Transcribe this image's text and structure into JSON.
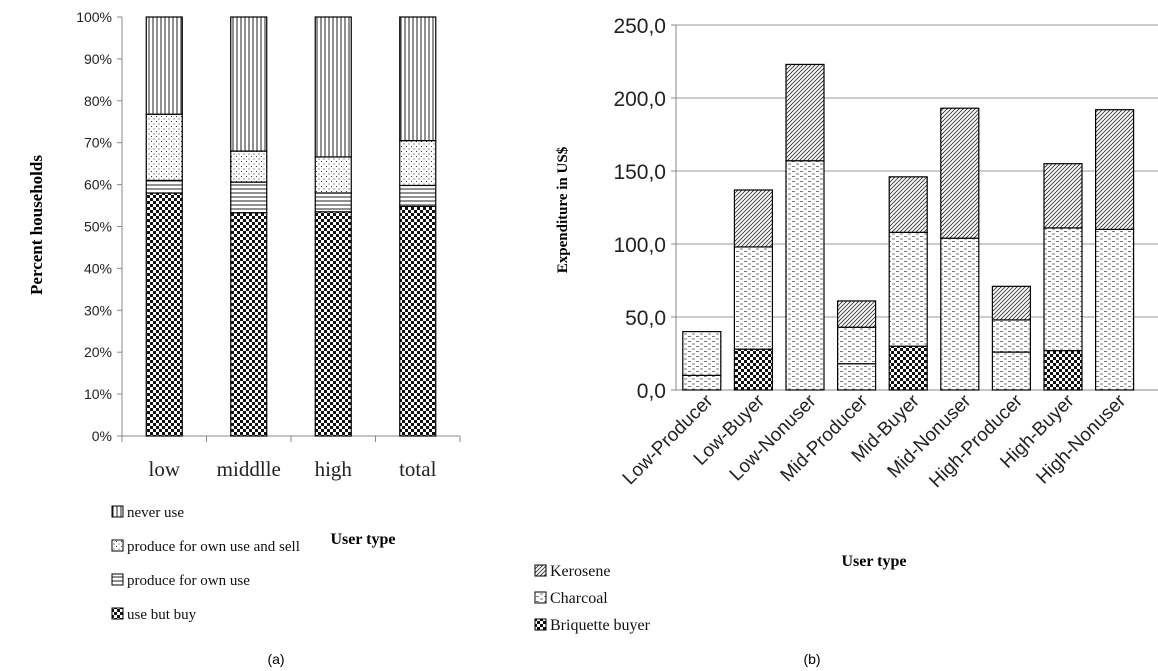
{
  "chart_data": [
    {
      "type": "bar",
      "stacked": true,
      "percent": true,
      "caption": "(a)",
      "ylabel": "Percent households",
      "xlabel": "User type",
      "categories": [
        "low",
        "middlle",
        "high",
        "total"
      ],
      "yticks": [
        "0%",
        "10%",
        "20%",
        "30%",
        "40%",
        "50%",
        "60%",
        "70%",
        "80%",
        "90%",
        "100%"
      ],
      "ylim": [
        0,
        100
      ],
      "grid": false,
      "legend_position": "bottom-left",
      "series": [
        {
          "name": "use but buy",
          "pattern": "checker",
          "values": [
            58,
            53.3,
            53.5,
            54.8
          ]
        },
        {
          "name": "produce for own use",
          "pattern": "hlines",
          "values": [
            3,
            7.3,
            4.5,
            5
          ]
        },
        {
          "name": "produce for own use and sell",
          "pattern": "dots",
          "values": [
            15.8,
            7.4,
            8.6,
            10.7
          ]
        },
        {
          "name": "never use",
          "pattern": "vlines",
          "values": [
            23.2,
            32,
            33.4,
            29.5
          ]
        }
      ],
      "legend_order": [
        "never use",
        "produce for own use and sell",
        "produce for own use",
        "use but buy"
      ]
    },
    {
      "type": "bar",
      "stacked": true,
      "caption": "(b)",
      "ylabel": "Expenditure in US$",
      "xlabel": "User type",
      "categories": [
        "Low-Producer",
        "Low-Buyer",
        "Low-Nonuser",
        "Mid-Producer",
        "Mid-Buyer",
        "Mid-Nonuser",
        "High-Producer",
        "High-Buyer",
        "High-Nonuser"
      ],
      "yticks": [
        "0,0",
        "50,0",
        "100,0",
        "150,0",
        "200,0",
        "250,0"
      ],
      "ylim": [
        0,
        250
      ],
      "grid": true,
      "legend_position": "bottom-left",
      "series": [
        {
          "name": "Briquette buyer",
          "pattern": "checker",
          "values": [
            0,
            28,
            0,
            0,
            30,
            0,
            0,
            27,
            0
          ]
        },
        {
          "name": "Charcoal",
          "pattern": "dashes",
          "values": [
            40,
            70,
            157,
            43,
            78,
            104,
            48,
            84,
            110
          ]
        },
        {
          "name": "Kerosene",
          "pattern": "diag",
          "values": [
            0,
            39,
            66,
            18,
            38,
            89,
            23,
            44,
            82
          ]
        }
      ],
      "lower_charcoal_band": [
        10,
        0,
        0,
        18,
        0,
        0,
        26,
        0,
        0
      ],
      "legend_order": [
        "Kerosene",
        "Charcoal",
        "Briquette buyer"
      ]
    }
  ]
}
